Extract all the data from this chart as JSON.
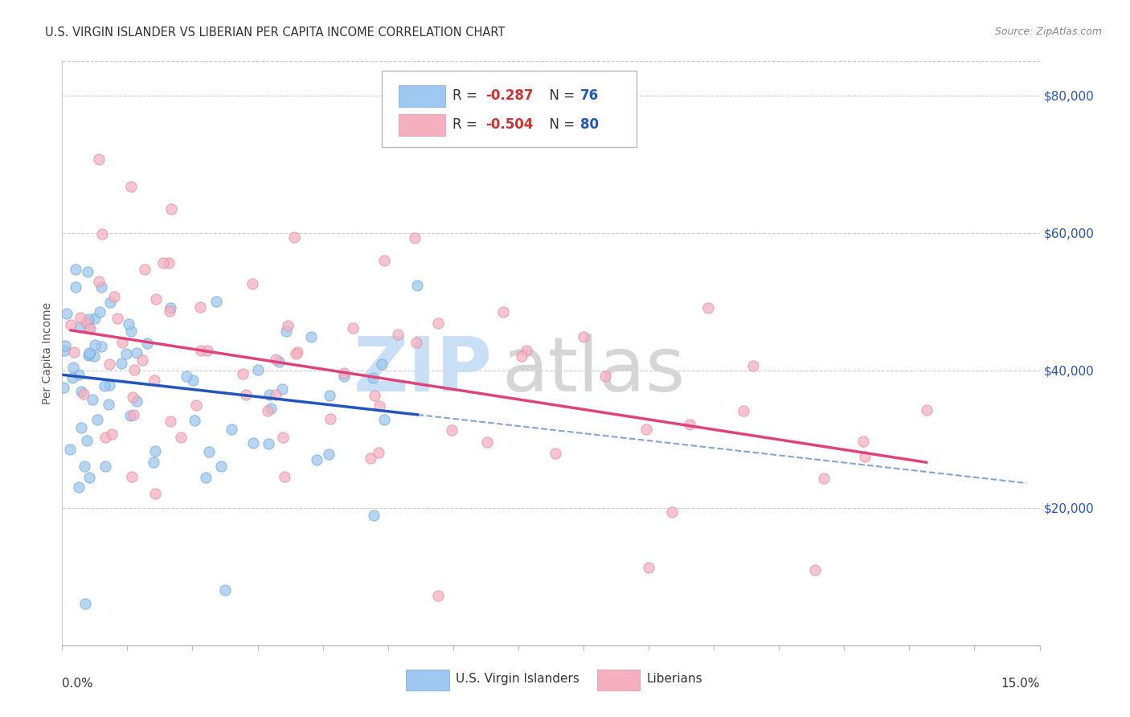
{
  "title": "U.S. VIRGIN ISLANDER VS LIBERIAN PER CAPITA INCOME CORRELATION CHART",
  "source": "Source: ZipAtlas.com",
  "ylabel": "Per Capita Income",
  "y_ticks": [
    20000,
    40000,
    60000,
    80000
  ],
  "y_tick_labels": [
    "$20,000",
    "$40,000",
    "$60,000",
    "$80,000"
  ],
  "xlim": [
    0.0,
    15.0
  ],
  "ylim": [
    0,
    85000
  ],
  "legend_label_blue": "U.S. Virgin Islanders",
  "legend_label_pink": "Liberians",
  "blue_color": "#9ec8f0",
  "pink_color": "#f5b0c0",
  "blue_edge_color": "#7aaad8",
  "pink_edge_color": "#e090a8",
  "blue_line_color": "#2255bb",
  "pink_line_color": "#dd4477",
  "r_color": "#cc3333",
  "n_color": "#2255bb",
  "watermark_zip_color": "#c8dff5",
  "watermark_atlas_color": "#d5d5d5"
}
